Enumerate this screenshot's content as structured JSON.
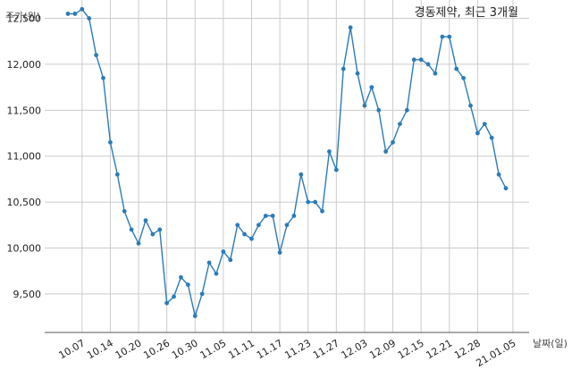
{
  "chart_data": {
    "type": "line",
    "title": "경동제약, 최근 3개월",
    "ylabel": "주가(원)",
    "xlabel": "날짜(일)",
    "ylim": [
      9080,
      12700
    ],
    "yticks": [
      9500,
      10000,
      10500,
      11000,
      11500,
      12000,
      12500
    ],
    "ytick_labels": [
      "9,500",
      "10,000",
      "10,500",
      "11,000",
      "11,500",
      "12,000",
      "12,500"
    ],
    "xtick_labels": [
      "10.07",
      "10.14",
      "10.20",
      "10.26",
      "10.30",
      "11.05",
      "11.11",
      "11.17",
      "11.23",
      "11.27",
      "12.03",
      "12.09",
      "12.15",
      "12.21",
      "12.28",
      "21.01.05"
    ],
    "xtick_indices": [
      2,
      6,
      10,
      14,
      18,
      22,
      26,
      30,
      34,
      38,
      42,
      46,
      50,
      54,
      58,
      63
    ],
    "grid": true,
    "line_color": "#2b7bb9",
    "series": [
      {
        "values": [
          12550,
          12550,
          12600,
          12500,
          12100,
          11850,
          11150,
          10800,
          10400,
          10200,
          10050,
          10300,
          10150,
          10200,
          9400,
          9470,
          9680,
          9600,
          9260,
          9500,
          9840,
          9720,
          9960,
          9870,
          10250,
          10150,
          10100,
          10250,
          10350,
          10350,
          9950,
          10250,
          10350,
          10800,
          10500,
          10500,
          10400,
          11050,
          10850,
          11950,
          12400,
          11900,
          11550,
          11750,
          11500,
          11050,
          11150,
          11350,
          11500,
          12050,
          12050,
          12000,
          11900,
          12300,
          12300,
          11950,
          11850,
          11550,
          11250,
          11350,
          11200,
          10800,
          10650
        ]
      }
    ]
  }
}
